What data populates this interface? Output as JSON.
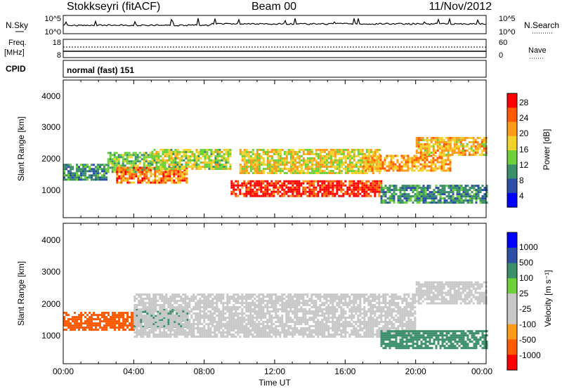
{
  "header": {
    "station": "Stokkseyri (fitACF)",
    "beam": "Beam 00",
    "date": "11/Nov/2012"
  },
  "sky_panel": {
    "left_label": "N.Sky",
    "right_label": "N.Search",
    "left_ticks": [
      "10^5",
      "10^0"
    ],
    "right_ticks": [
      "10^5",
      "10^0"
    ]
  },
  "freq_panel": {
    "left_label_1": "Freq.",
    "left_label_2": "[MHz]",
    "left_ticks": [
      "18",
      "8"
    ],
    "right_label": "Nave",
    "right_ticks": [
      "60",
      "0"
    ]
  },
  "cpid_panel": {
    "label": "CPID",
    "text": "normal (fast) 151"
  },
  "colors": {
    "power": [
      "#0000ff",
      "#2e4fa6",
      "#3b8f6a",
      "#6fd13a",
      "#f3d22e",
      "#ff9a1a",
      "#ff5a00",
      "#ff0000"
    ],
    "velocity": [
      "#ff0000",
      "#ff5a00",
      "#ff9a1a",
      "#c8c8c8",
      "#c8c8c8",
      "#6fd13a",
      "#3b8f6a",
      "#2e4fa6",
      "#0000ff"
    ]
  },
  "chart_data": [
    {
      "type": "heatmap",
      "title": "",
      "xlabel": "",
      "ylabel": "Slant Range [km]",
      "colorbar_label": "Power [dB]",
      "colorbar_ticks": [
        "28",
        "24",
        "20",
        "16",
        "12",
        "8",
        "4"
      ],
      "colorbar_range": [
        0,
        32
      ],
      "ylim": [
        0,
        4600
      ],
      "y_ticks": [
        "4000",
        "3000",
        "2000",
        "1000"
      ],
      "xlim": [
        "00:00",
        "24:00"
      ],
      "bands": [
        {
          "x": [
            0.0,
            2.5
          ],
          "y": [
            1300,
            1800
          ],
          "value": 10
        },
        {
          "x": [
            2.5,
            5.0
          ],
          "y": [
            1500,
            2200
          ],
          "value": 14
        },
        {
          "x": [
            3.0,
            7.0
          ],
          "y": [
            1200,
            1700
          ],
          "value": 24
        },
        {
          "x": [
            5.0,
            9.5
          ],
          "y": [
            1600,
            2300
          ],
          "value": 16
        },
        {
          "x": [
            9.5,
            18.0
          ],
          "y": [
            750,
            1250
          ],
          "value": 30
        },
        {
          "x": [
            10.0,
            18.0
          ],
          "y": [
            1500,
            2300
          ],
          "value": 18
        },
        {
          "x": [
            17.0,
            22.0
          ],
          "y": [
            1600,
            2100
          ],
          "value": 22
        },
        {
          "x": [
            20.0,
            24.0
          ],
          "y": [
            2100,
            2700
          ],
          "value": 20
        },
        {
          "x": [
            18.0,
            24.0
          ],
          "y": [
            500,
            1100
          ],
          "value": 10
        }
      ]
    },
    {
      "type": "heatmap",
      "title": "",
      "xlabel": "Time UT",
      "ylabel": "Slant Range [km]",
      "colorbar_label": "Velocity [m s⁻¹]",
      "colorbar_ticks": [
        "1000",
        "500",
        "100",
        "25",
        "-25",
        "-100",
        "-500",
        "-1000"
      ],
      "ylim": [
        0,
        4600
      ],
      "y_ticks": [
        "4000",
        "3000",
        "2000",
        "1000"
      ],
      "x_ticks": [
        "00:00",
        "04:00",
        "08:00",
        "12:00",
        "16:00",
        "20:00",
        "00:00"
      ],
      "xlim": [
        "00:00",
        "24:00"
      ],
      "bands": [
        {
          "x": [
            0.0,
            4.0
          ],
          "y": [
            1100,
            1700
          ],
          "value": -200
        },
        {
          "x": [
            4.0,
            7.0
          ],
          "y": [
            1200,
            1800
          ],
          "value": 150
        },
        {
          "x": [
            4.0,
            20.0
          ],
          "y": [
            900,
            2300
          ],
          "value": 0
        },
        {
          "x": [
            18.0,
            24.0
          ],
          "y": [
            500,
            1100
          ],
          "value": 150
        },
        {
          "x": [
            20.0,
            24.0
          ],
          "y": [
            2000,
            2700
          ],
          "value": 0
        }
      ]
    }
  ]
}
